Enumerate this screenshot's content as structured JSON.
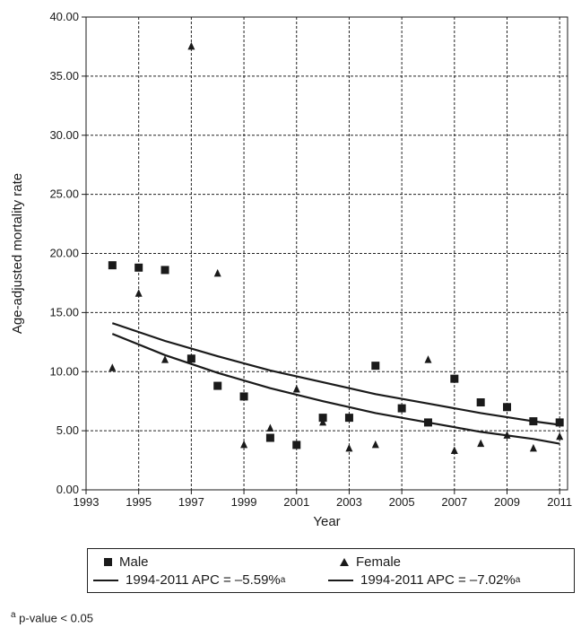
{
  "chart_data": {
    "type": "scatter",
    "xlabel": "Year",
    "ylabel": "Age-adjusted mortality rate",
    "xlim": [
      1993,
      2011.3
    ],
    "ylim": [
      0,
      40
    ],
    "xticks": [
      "1993",
      "1995",
      "1997",
      "1999",
      "2001",
      "2003",
      "2005",
      "2007",
      "2009",
      "2011"
    ],
    "yticks": [
      "0.00",
      "5.00",
      "10.00",
      "15.00",
      "20.00",
      "25.00",
      "30.00",
      "35.00",
      "40.00"
    ],
    "grid": true,
    "legend_position": "below",
    "series": [
      {
        "name": "Male",
        "marker": "square",
        "x": [
          1994,
          1995,
          1996,
          1997,
          1998,
          1999,
          2000,
          2001,
          2002,
          2003,
          2004,
          2005,
          2006,
          2007,
          2008,
          2009,
          2010,
          2011
        ],
        "y": [
          19.0,
          18.8,
          18.6,
          11.1,
          8.8,
          7.9,
          4.4,
          3.8,
          6.1,
          6.1,
          10.5,
          6.9,
          5.7,
          9.4,
          7.4,
          7.0,
          5.8,
          5.7
        ]
      },
      {
        "name": "Female",
        "marker": "triangle",
        "x": [
          1994,
          1995,
          1996,
          1997,
          1998,
          1999,
          2000,
          2001,
          2002,
          2003,
          2004,
          2005,
          2006,
          2007,
          2008,
          2009,
          2010,
          2011
        ],
        "y": [
          10.3,
          16.6,
          11.0,
          37.5,
          18.3,
          3.8,
          5.2,
          8.5,
          5.7,
          3.5,
          3.8,
          6.9,
          11.0,
          3.3,
          3.9,
          4.6,
          3.5,
          4.5
        ]
      }
    ],
    "trend_lines": [
      {
        "label": "1994-2011 APC = –5.59%",
        "superscript": "a",
        "x": [
          1994,
          1996,
          1998,
          2000,
          2002,
          2004,
          2006,
          2008,
          2010,
          2011
        ],
        "y": [
          14.1,
          12.6,
          11.3,
          10.1,
          9.1,
          8.1,
          7.3,
          6.5,
          5.8,
          5.5
        ]
      },
      {
        "label": "1994-2011 APC = –7.02%",
        "superscript": "a",
        "x": [
          1994,
          1996,
          1998,
          2000,
          2002,
          2004,
          2006,
          2008,
          2010,
          2011
        ],
        "y": [
          13.2,
          11.4,
          9.9,
          8.6,
          7.5,
          6.5,
          5.7,
          4.9,
          4.3,
          3.9
        ]
      }
    ]
  },
  "legend": {
    "male_label": "Male",
    "female_label": "Female",
    "male_trend_label": "1994-2011 APC = –5.59%",
    "female_trend_label": "1994-2011 APC = –7.02%",
    "superscript": "a"
  },
  "footnote": {
    "marker": "a",
    "text": " p-value < 0.05"
  }
}
